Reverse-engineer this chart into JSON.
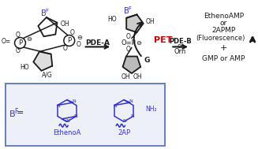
{
  "bg_color": "#ffffff",
  "blue_color": "#3333cc",
  "red_color": "#cc0000",
  "black_color": "#1a1a1a",
  "box_edge_color": "#5577bb",
  "box_face_color": "#eef0f8",
  "figsize": [
    3.27,
    1.89
  ],
  "dpi": 100,
  "right_panel": {
    "line1": "EthenoAMP",
    "line2": "or",
    "line3": "2APMP",
    "line4": "(Fluorescence)",
    "line5": "+",
    "line6": "GMP or AMP"
  },
  "labels": {
    "pde_a": "PDE-A",
    "pet": "PET",
    "pde_b": "PDE-B",
    "or1": "or",
    "orn": "Orn",
    "ag": "A/G",
    "g": "G",
    "ho": "HO",
    "oh": "OH",
    "bf": "B",
    "bf_sup": "F",
    "etheno_name": "EthenoA",
    "ap_name": "2AP",
    "nh2": "NH",
    "nh2_sub": "2",
    "bf_eq": "B",
    "bf_eq_sup": "F",
    "equals": " ="
  }
}
